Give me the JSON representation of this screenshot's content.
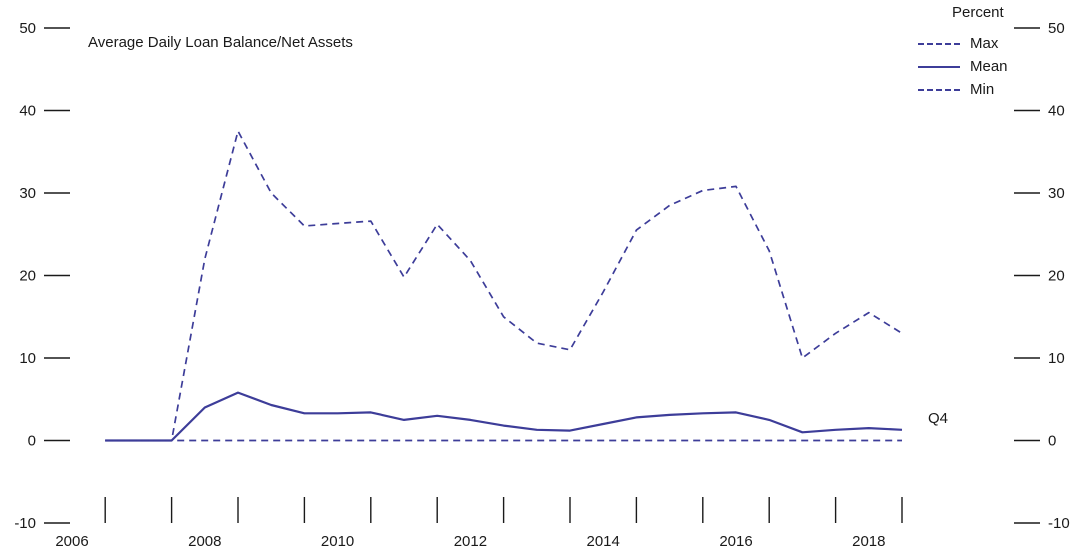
{
  "chart_data": {
    "type": "line",
    "title": "Average Daily Loan Balance/Net Assets",
    "ylabel_right": "Percent",
    "annotation": "Q4",
    "grid": false,
    "legend_position": "top-right",
    "line_color": "#3d3d99",
    "ylim": [
      -10,
      50
    ],
    "ytick_step": 10,
    "xticks": [
      2006,
      2008,
      2010,
      2012,
      2014,
      2016,
      2018
    ],
    "xtick_marks": [
      2006.5,
      2007.5,
      2008.5,
      2009.5,
      2010.5,
      2011.5,
      2012.5,
      2013.5,
      2014.5,
      2015.5,
      2016.5,
      2017.5,
      2018.5
    ],
    "x": [
      2006.5,
      2007,
      2007.5,
      2008,
      2008.5,
      2009,
      2009.5,
      2010,
      2010.5,
      2011,
      2011.5,
      2012,
      2012.5,
      2013,
      2013.5,
      2014,
      2014.5,
      2015,
      2015.5,
      2016,
      2016.5,
      2017,
      2017.5,
      2018,
      2018.5
    ],
    "series": [
      {
        "name": "Max",
        "style": "dashed",
        "values": [
          0,
          0,
          0,
          22,
          37.5,
          30,
          26,
          26.3,
          26.6,
          19.8,
          26.2,
          21.8,
          15,
          11.8,
          11,
          18,
          25.5,
          28.5,
          30.3,
          30.8,
          23,
          10,
          13,
          15.5,
          13
        ]
      },
      {
        "name": "Mean",
        "style": "solid",
        "values": [
          0,
          0,
          0,
          4,
          5.8,
          4.3,
          3.3,
          3.3,
          3.4,
          2.5,
          3,
          2.5,
          1.8,
          1.3,
          1.2,
          2,
          2.8,
          3.1,
          3.3,
          3.4,
          2.5,
          1,
          1.3,
          1.5,
          1.3
        ]
      },
      {
        "name": "Min",
        "style": "dashed",
        "values": [
          0,
          0,
          0,
          0,
          0,
          0,
          0,
          0,
          0,
          0,
          0,
          0,
          0,
          0,
          0,
          0,
          0,
          0,
          0,
          0,
          0,
          0,
          0,
          0,
          0
        ]
      }
    ]
  }
}
